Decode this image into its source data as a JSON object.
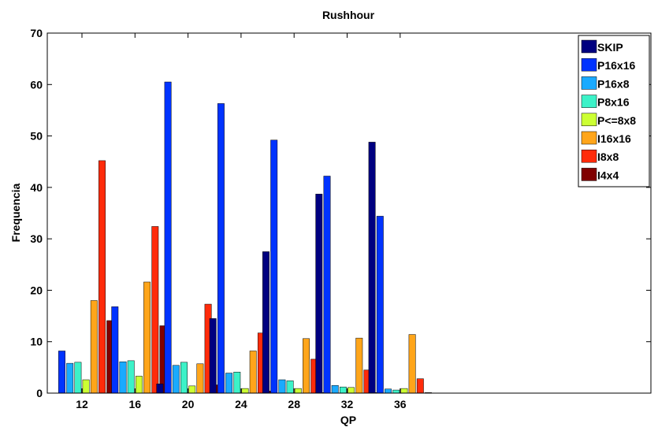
{
  "chart_data": {
    "type": "bar",
    "title": "Rushhour",
    "xlabel": "QP",
    "ylabel": "Frequencia",
    "categories": [
      "12",
      "16",
      "20",
      "24",
      "28",
      "32",
      "36"
    ],
    "ylim": [
      0,
      70
    ],
    "yticks": [
      0,
      10,
      20,
      30,
      40,
      50,
      60,
      70
    ],
    "grid": false,
    "legend_position": "top-right",
    "series": [
      {
        "name": "SKIP",
        "color": "#000080",
        "values": [
          0,
          0,
          1.8,
          14.5,
          27.5,
          38.7,
          48.8
        ]
      },
      {
        "name": "P16x16",
        "color": "#0033ff",
        "values": [
          8.2,
          16.8,
          60.5,
          56.3,
          49.2,
          42.2,
          34.4
        ]
      },
      {
        "name": "P16x8",
        "color": "#1aaaff",
        "values": [
          5.8,
          6.1,
          5.4,
          3.9,
          2.6,
          1.5,
          0.8
        ]
      },
      {
        "name": "P8x16",
        "color": "#3cf2c8",
        "values": [
          6.0,
          6.3,
          6.0,
          4.1,
          2.4,
          1.2,
          0.6
        ]
      },
      {
        "name": "P<=8x8",
        "color": "#ccff33",
        "values": [
          2.6,
          3.3,
          1.4,
          0.9,
          0.9,
          1.1,
          0.9
        ]
      },
      {
        "name": "I16x16",
        "color": "#ffa51a",
        "values": [
          18.0,
          21.6,
          5.7,
          8.2,
          10.6,
          10.7,
          11.4
        ]
      },
      {
        "name": "I8x8",
        "color": "#ff2b0a",
        "values": [
          45.2,
          32.4,
          17.3,
          11.7,
          6.6,
          4.5,
          2.8
        ]
      },
      {
        "name": "I4x4",
        "color": "#800000",
        "values": [
          14.1,
          13.1,
          1.6,
          0.4,
          0.1,
          0.1,
          0.1
        ]
      }
    ]
  }
}
